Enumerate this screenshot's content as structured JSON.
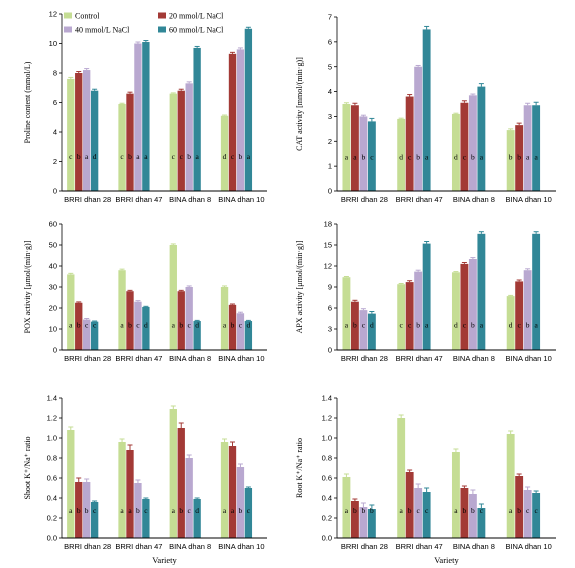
{
  "legend": [
    {
      "label": "Control",
      "color": "#c5dd94"
    },
    {
      "label": "20 mmol/L NaCl",
      "color": "#a33a36"
    },
    {
      "label": "40 mmol/L NaCl",
      "color": "#b9a8d0"
    },
    {
      "label": "60 mmol/L NaCl",
      "color": "#318797"
    }
  ],
  "chart_data": [
    {
      "type": "bar",
      "ylabel": "Proline content (mmol/L)",
      "xlabel": "",
      "ylim": [
        0,
        12
      ],
      "yticks": [
        "0",
        "2",
        "4",
        "6",
        "8",
        "10",
        "12"
      ],
      "categories": [
        "BRRI dhan 28",
        "BRRI dhan 47",
        "BINA dhan 8",
        "BINA dhan 10"
      ],
      "series": [
        {
          "name": "Control",
          "values": [
            7.6,
            5.9,
            6.6,
            5.1
          ],
          "errors": [
            0.1,
            0.05,
            0.05,
            0.05
          ],
          "letters": [
            "c",
            "c",
            "c",
            "d"
          ]
        },
        {
          "name": "20 mmol/L NaCl",
          "values": [
            8.0,
            6.6,
            6.8,
            9.3
          ],
          "errors": [
            0.1,
            0.1,
            0.1,
            0.1
          ],
          "letters": [
            "b",
            "b",
            "c",
            "c"
          ]
        },
        {
          "name": "40 mmol/L NaCl",
          "values": [
            8.2,
            10.0,
            7.3,
            9.6
          ],
          "errors": [
            0.1,
            0.1,
            0.1,
            0.1
          ],
          "letters": [
            "a",
            "a",
            "b",
            "b"
          ]
        },
        {
          "name": "60 mmol/L NaCl",
          "values": [
            6.8,
            10.1,
            9.7,
            11.0
          ],
          "errors": [
            0.1,
            0.1,
            0.1,
            0.1
          ],
          "letters": [
            "d",
            "a",
            "a",
            "a"
          ]
        }
      ]
    },
    {
      "type": "bar",
      "ylabel": "CAT activity [mmol/(min·g)]",
      "xlabel": "",
      "ylim": [
        0,
        7
      ],
      "yticks": [
        "0",
        "1",
        "2",
        "3",
        "4",
        "5",
        "6",
        "7"
      ],
      "categories": [
        "BRRI dhan 28",
        "BRRI dhan 47",
        "BINA dhan 8",
        "BINA dhan 10"
      ],
      "series": [
        {
          "name": "Control",
          "values": [
            3.5,
            2.9,
            3.1,
            2.45
          ],
          "errors": [
            0.05,
            0.03,
            0.03,
            0.05
          ],
          "letters": [
            "a",
            "d",
            "d",
            "b"
          ]
        },
        {
          "name": "20 mmol/L NaCl",
          "values": [
            3.45,
            3.8,
            3.55,
            2.65
          ],
          "errors": [
            0.08,
            0.08,
            0.08,
            0.08
          ],
          "letters": [
            "a",
            "c",
            "c",
            "b"
          ]
        },
        {
          "name": "40 mmol/L NaCl",
          "values": [
            3.0,
            5.0,
            3.85,
            3.45
          ],
          "errors": [
            0.05,
            0.05,
            0.05,
            0.08
          ],
          "letters": [
            "b",
            "b",
            "b",
            "a"
          ]
        },
        {
          "name": "60 mmol/L NaCl",
          "values": [
            2.8,
            6.5,
            4.2,
            3.45
          ],
          "errors": [
            0.12,
            0.12,
            0.12,
            0.12
          ],
          "letters": [
            "c",
            "a",
            "a",
            "a"
          ]
        }
      ]
    },
    {
      "type": "bar",
      "ylabel": "POX activity [μmol/(min·g)]",
      "xlabel": "",
      "ylim": [
        0,
        60
      ],
      "yticks": [
        "0",
        "10",
        "20",
        "30",
        "40",
        "50",
        "60"
      ],
      "categories": [
        "BRRI dhan 28",
        "BRRI dhan 47",
        "BINA dhan 8",
        "BINA dhan 10"
      ],
      "series": [
        {
          "name": "Control",
          "values": [
            36,
            38,
            50,
            30
          ],
          "errors": [
            0.5,
            0.5,
            0.5,
            0.5
          ],
          "letters": [
            "a",
            "a",
            "a",
            "a"
          ]
        },
        {
          "name": "20 mmol/L NaCl",
          "values": [
            22.5,
            28,
            28,
            21.5
          ],
          "errors": [
            0.4,
            0.4,
            0.4,
            0.4
          ],
          "letters": [
            "b",
            "b",
            "b",
            "b"
          ]
        },
        {
          "name": "40 mmol/L NaCl",
          "values": [
            14.5,
            23,
            30,
            17.5
          ],
          "errors": [
            0.5,
            0.5,
            0.5,
            0.5
          ],
          "letters": [
            "c",
            "c",
            "c",
            "c"
          ]
        },
        {
          "name": "60 mmol/L NaCl",
          "values": [
            13.5,
            20.5,
            13.8,
            13.8
          ],
          "errors": [
            0.3,
            0.3,
            0.3,
            0.3
          ],
          "letters": [
            "c",
            "d",
            "d",
            "d"
          ]
        }
      ]
    },
    {
      "type": "bar",
      "ylabel": "APX activity [μmol/(min·g)]",
      "xlabel": "",
      "ylim": [
        0,
        18
      ],
      "yticks": [
        "0",
        "3",
        "6",
        "9",
        "12",
        "15",
        "18"
      ],
      "categories": [
        "BRRI dhan 28",
        "BRRI dhan 47",
        "BINA dhan 8",
        "BINA dhan 10"
      ],
      "series": [
        {
          "name": "Control",
          "values": [
            10.4,
            9.4,
            11.1,
            7.7
          ],
          "errors": [
            0.1,
            0.1,
            0.1,
            0.1
          ],
          "letters": [
            "a",
            "c",
            "d",
            "d"
          ]
        },
        {
          "name": "20 mmol/L NaCl",
          "values": [
            6.9,
            9.7,
            12.3,
            9.8
          ],
          "errors": [
            0.2,
            0.2,
            0.2,
            0.2
          ],
          "letters": [
            "b",
            "c",
            "c",
            "c"
          ]
        },
        {
          "name": "40 mmol/L NaCl",
          "values": [
            5.7,
            11.2,
            13.0,
            11.4
          ],
          "errors": [
            0.2,
            0.2,
            0.2,
            0.2
          ],
          "letters": [
            "c",
            "b",
            "b",
            "b"
          ]
        },
        {
          "name": "60 mmol/L NaCl",
          "values": [
            5.2,
            15.2,
            16.6,
            16.6
          ],
          "errors": [
            0.3,
            0.3,
            0.3,
            0.3
          ],
          "letters": [
            "d",
            "a",
            "a",
            "a"
          ]
        }
      ]
    },
    {
      "type": "bar",
      "ylabel": "Shoot K⁺/Na⁺ ratio",
      "xlabel": "Variety",
      "ylim": [
        0,
        1.4
      ],
      "yticks": [
        "0.0",
        "0.2",
        "0.4",
        "0.6",
        "0.8",
        "1.0",
        "1.2",
        "1.4"
      ],
      "categories": [
        "BRRI dhan 28",
        "BRRI dhan 47",
        "BINA dhan 8",
        "BINA dhan 10"
      ],
      "series": [
        {
          "name": "Control",
          "values": [
            1.08,
            0.96,
            1.29,
            0.96
          ],
          "errors": [
            0.03,
            0.03,
            0.03,
            0.03
          ],
          "letters": [
            "a",
            "a",
            "a",
            "a"
          ]
        },
        {
          "name": "20 mmol/L NaCl",
          "values": [
            0.56,
            0.88,
            1.1,
            0.92
          ],
          "errors": [
            0.04,
            0.05,
            0.05,
            0.04
          ],
          "letters": [
            "b",
            "a",
            "b",
            "a"
          ]
        },
        {
          "name": "40 mmol/L NaCl",
          "values": [
            0.56,
            0.55,
            0.8,
            0.71
          ],
          "errors": [
            0.03,
            0.03,
            0.03,
            0.03
          ],
          "letters": [
            "b",
            "b",
            "c",
            "b"
          ]
        },
        {
          "name": "60 mmol/L NaCl",
          "values": [
            0.36,
            0.39,
            0.39,
            0.5
          ],
          "errors": [
            0.01,
            0.01,
            0.01,
            0.01
          ],
          "letters": [
            "c",
            "c",
            "d",
            "c"
          ]
        }
      ]
    },
    {
      "type": "bar",
      "ylabel": "Root K⁺/Na⁺ ratio",
      "xlabel": "Variety",
      "ylim": [
        0,
        1.4
      ],
      "yticks": [
        "0.0",
        "0.2",
        "0.4",
        "0.6",
        "0.8",
        "1.0",
        "1.2",
        "1.4"
      ],
      "categories": [
        "BRRI dhan 28",
        "BRRI dhan 47",
        "BINA dhan 8",
        "BINA dhan 10"
      ],
      "series": [
        {
          "name": "Control",
          "values": [
            0.61,
            1.2,
            0.86,
            1.04
          ],
          "errors": [
            0.03,
            0.03,
            0.03,
            0.03
          ],
          "letters": [
            "a",
            "a",
            "a",
            "a"
          ]
        },
        {
          "name": "20 mmol/L NaCl",
          "values": [
            0.37,
            0.66,
            0.5,
            0.62
          ],
          "errors": [
            0.02,
            0.02,
            0.02,
            0.02
          ],
          "letters": [
            "b",
            "b",
            "b",
            "b"
          ]
        },
        {
          "name": "40 mmol/L NaCl",
          "values": [
            0.31,
            0.5,
            0.44,
            0.48
          ],
          "errors": [
            0.04,
            0.04,
            0.04,
            0.03
          ],
          "letters": [
            "b",
            "c",
            "b",
            "c"
          ]
        },
        {
          "name": "60 mmol/L NaCl",
          "values": [
            0.29,
            0.46,
            0.3,
            0.45
          ],
          "errors": [
            0.04,
            0.04,
            0.04,
            0.02
          ],
          "letters": [
            "b",
            "c",
            "c",
            "c"
          ]
        }
      ]
    }
  ]
}
